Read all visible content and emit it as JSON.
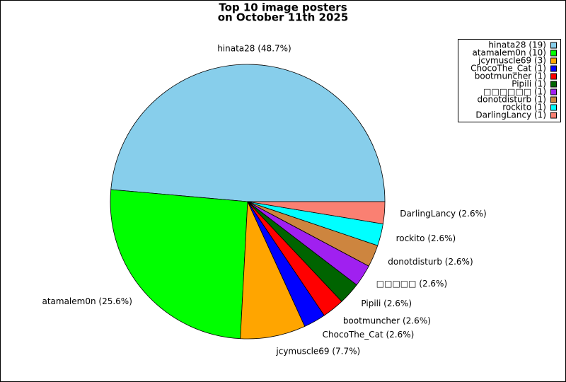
{
  "chart_data": {
    "type": "pie",
    "title": [
      "Top 10 image posters",
      "on October 11th 2025"
    ],
    "categories": [
      "hinata28 (19)",
      "atamalem0n (10)",
      "jcymuscle69 (3)",
      "ChocoThe_Cat (1)",
      "bootmuncher (1)",
      "Pipili (1)",
      "□□□□□□ (1)",
      "donotdisturb (1)",
      "rockito (1)",
      "DarlingLancy (1)"
    ],
    "values": [
      48.7,
      25.6,
      7.7,
      2.6,
      2.6,
      2.6,
      2.6,
      2.6,
      2.6,
      2.6
    ],
    "value_labels": [
      "hinata28 (48.7%)",
      "atamalem0n (25.6%)",
      "jcymuscle69 (7.7%)",
      "ChocoThe_Cat (2.6%)",
      "bootmuncher (2.6%)",
      "Pipili (2.6%)",
      "□□□□□ (2.6%)",
      "donotdisturb (2.6%)",
      "rockito (2.6%)",
      "DarlingLancy (2.6%)"
    ],
    "colors": [
      "#87ceeb",
      "#00ff00",
      "#ffa500",
      "#0000ff",
      "#ff0000",
      "#006400",
      "#a020f0",
      "#cd853f",
      "#00ffff",
      "#fa8072"
    ],
    "legend": "top-right"
  }
}
